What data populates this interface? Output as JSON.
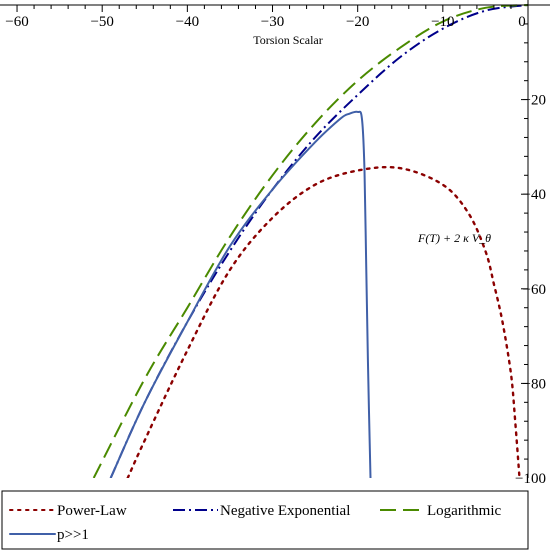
{
  "chart_data": {
    "type": "line",
    "title": "",
    "xlabel": "Torsion Scalar",
    "ylabel": "",
    "annotation": "F(T) + 2 κ V_θ",
    "xlim": [
      -62,
      0
    ],
    "ylim": [
      -100,
      0
    ],
    "x_ticks": [
      -60,
      -50,
      -40,
      -30,
      -20,
      -10,
      0
    ],
    "x_tick_labels": [
      "−60",
      "−50",
      "−40",
      "−30",
      "−20",
      "−10",
      "0"
    ],
    "y_ticks": [
      -20,
      -40,
      -60,
      -80,
      -100
    ],
    "y_tick_labels": [
      "−20",
      "−40",
      "−60",
      "−80",
      "−100"
    ],
    "legend_position": "bottom",
    "grid": false,
    "series": [
      {
        "name": "Power-Law",
        "color": "#8b0000",
        "dash": "dotted",
        "points": [
          [
            -47,
            -100
          ],
          [
            -45,
            -92
          ],
          [
            -40,
            -73
          ],
          [
            -35,
            -56
          ],
          [
            -30,
            -45
          ],
          [
            -25,
            -38
          ],
          [
            -20,
            -35
          ],
          [
            -15,
            -34.5
          ],
          [
            -10,
            -38
          ],
          [
            -7,
            -44
          ],
          [
            -5,
            -52
          ],
          [
            -4,
            -59
          ],
          [
            -3,
            -67
          ],
          [
            -2,
            -78
          ],
          [
            -1.5,
            -88
          ],
          [
            -1,
            -100
          ]
        ]
      },
      {
        "name": "Negative Exponential",
        "color": "#00008b",
        "dash": "dashdot",
        "points": [
          [
            -49,
            -100
          ],
          [
            -45,
            -84
          ],
          [
            -40,
            -67
          ],
          [
            -35,
            -52
          ],
          [
            -30,
            -39
          ],
          [
            -25,
            -28
          ],
          [
            -20,
            -19
          ],
          [
            -15,
            -11
          ],
          [
            -10,
            -5
          ],
          [
            -5,
            -1.2
          ],
          [
            0,
            0
          ]
        ]
      },
      {
        "name": "Logarithmic",
        "color": "#4a8a00",
        "dash": "dashed",
        "points": [
          [
            -51,
            -100
          ],
          [
            -45,
            -79
          ],
          [
            -40,
            -64
          ],
          [
            -35,
            -49
          ],
          [
            -30,
            -36
          ],
          [
            -25,
            -25
          ],
          [
            -20,
            -16
          ],
          [
            -15,
            -9
          ],
          [
            -10,
            -3.5
          ],
          [
            -5,
            -0.6
          ],
          [
            0,
            0
          ]
        ]
      },
      {
        "name": "p>>1",
        "color": "#4060a8",
        "dash": "solid",
        "points": [
          [
            -49,
            -100
          ],
          [
            -45,
            -84
          ],
          [
            -40,
            -67
          ],
          [
            -35,
            -51
          ],
          [
            -30,
            -39
          ],
          [
            -25,
            -29
          ],
          [
            -22,
            -24
          ],
          [
            -21,
            -23
          ],
          [
            -20,
            -22.6
          ],
          [
            -19.5,
            -24
          ],
          [
            -19.2,
            -35
          ],
          [
            -19,
            -55
          ],
          [
            -18.8,
            -75
          ],
          [
            -18.5,
            -100
          ]
        ]
      }
    ]
  }
}
